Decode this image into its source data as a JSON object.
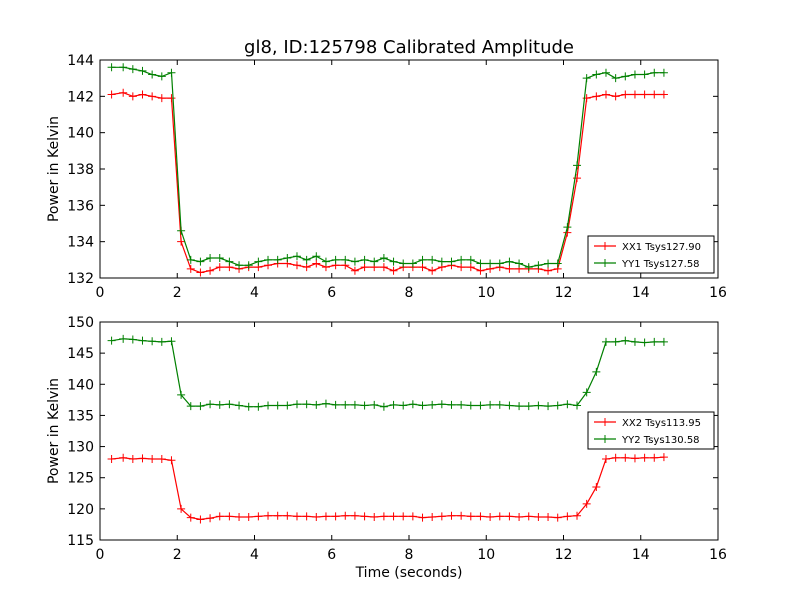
{
  "figure": {
    "title": "gl8, ID:125798 Calibrated Amplitude"
  },
  "chart_data": [
    {
      "type": "line",
      "title": "gl8, ID:125798 Calibrated Amplitude",
      "xlabel": "",
      "ylabel": "Power in Kelvin",
      "xlim": [
        0,
        16
      ],
      "ylim": [
        132,
        144
      ],
      "xticks": [
        "0",
        "2",
        "4",
        "6",
        "8",
        "10",
        "12",
        "14",
        "16"
      ],
      "yticks": [
        "132",
        "134",
        "136",
        "138",
        "140",
        "142",
        "144"
      ],
      "grid": false,
      "legend_position": "lower-right",
      "x": [
        0.3,
        0.6,
        0.85,
        1.1,
        1.35,
        1.6,
        1.85,
        2.1,
        2.35,
        2.6,
        2.85,
        3.1,
        3.35,
        3.6,
        3.85,
        4.1,
        4.35,
        4.6,
        4.85,
        5.1,
        5.35,
        5.6,
        5.85,
        6.1,
        6.35,
        6.6,
        6.85,
        7.1,
        7.35,
        7.6,
        7.85,
        8.1,
        8.35,
        8.6,
        8.85,
        9.1,
        9.35,
        9.6,
        9.85,
        10.1,
        10.35,
        10.6,
        10.85,
        11.1,
        11.35,
        11.6,
        11.85,
        12.1,
        12.35,
        12.6,
        12.85,
        13.1,
        13.35,
        13.6,
        13.85,
        14.1,
        14.35,
        14.6
      ],
      "series": [
        {
          "name": "XX1 Tsys127.90",
          "color": "#ff0000",
          "values": [
            142.1,
            142.2,
            142.0,
            142.1,
            142.0,
            141.9,
            141.9,
            134.0,
            132.5,
            132.3,
            132.4,
            132.6,
            132.6,
            132.5,
            132.6,
            132.6,
            132.7,
            132.8,
            132.8,
            132.7,
            132.6,
            132.8,
            132.6,
            132.7,
            132.7,
            132.4,
            132.6,
            132.6,
            132.6,
            132.4,
            132.6,
            132.6,
            132.6,
            132.4,
            132.6,
            132.7,
            132.6,
            132.6,
            132.4,
            132.5,
            132.6,
            132.5,
            132.5,
            132.5,
            132.5,
            132.4,
            132.5,
            134.5,
            137.5,
            141.9,
            142.0,
            142.1,
            142.0,
            142.1,
            142.1,
            142.1,
            142.1,
            142.1
          ]
        },
        {
          "name": "YY1 Tsys127.58",
          "color": "#008000",
          "values": [
            143.6,
            143.6,
            143.5,
            143.4,
            143.2,
            143.1,
            143.3,
            134.6,
            133.0,
            132.9,
            133.1,
            133.1,
            132.9,
            132.7,
            132.7,
            132.9,
            133.0,
            133.0,
            133.1,
            133.2,
            133.0,
            133.2,
            132.9,
            133.0,
            133.0,
            132.9,
            133.0,
            132.9,
            133.1,
            132.9,
            132.8,
            132.8,
            133.0,
            133.0,
            132.9,
            132.9,
            133.0,
            133.0,
            132.8,
            132.8,
            132.8,
            132.9,
            132.8,
            132.6,
            132.7,
            132.8,
            132.8,
            134.8,
            138.2,
            143.0,
            143.2,
            143.3,
            143.0,
            143.1,
            143.2,
            143.2,
            143.3,
            143.3
          ]
        }
      ]
    },
    {
      "type": "line",
      "title": "",
      "xlabel": "Time (seconds)",
      "ylabel": "Power in Kelvin",
      "xlim": [
        0,
        16
      ],
      "ylim": [
        115,
        150
      ],
      "xticks": [
        "0",
        "2",
        "4",
        "6",
        "8",
        "10",
        "12",
        "14",
        "16"
      ],
      "yticks": [
        "115",
        "120",
        "125",
        "130",
        "135",
        "140",
        "145",
        "150"
      ],
      "grid": false,
      "legend_position": "center-right",
      "x": [
        0.3,
        0.6,
        0.85,
        1.1,
        1.35,
        1.6,
        1.85,
        2.1,
        2.35,
        2.6,
        2.85,
        3.1,
        3.35,
        3.6,
        3.85,
        4.1,
        4.35,
        4.6,
        4.85,
        5.1,
        5.35,
        5.6,
        5.85,
        6.1,
        6.35,
        6.6,
        6.85,
        7.1,
        7.35,
        7.6,
        7.85,
        8.1,
        8.35,
        8.6,
        8.85,
        9.1,
        9.35,
        9.6,
        9.85,
        10.1,
        10.35,
        10.6,
        10.85,
        11.1,
        11.35,
        11.6,
        11.85,
        12.1,
        12.35,
        12.6,
        12.85,
        13.1,
        13.35,
        13.6,
        13.85,
        14.1,
        14.35,
        14.6
      ],
      "series": [
        {
          "name": "XX2 Tsys113.95",
          "color": "#ff0000",
          "values": [
            128.0,
            128.2,
            128.0,
            128.1,
            128.0,
            128.0,
            127.8,
            120.0,
            118.6,
            118.3,
            118.5,
            118.8,
            118.8,
            118.7,
            118.7,
            118.8,
            118.9,
            118.9,
            118.9,
            118.8,
            118.8,
            118.7,
            118.8,
            118.8,
            118.9,
            118.9,
            118.8,
            118.7,
            118.8,
            118.8,
            118.8,
            118.8,
            118.6,
            118.7,
            118.8,
            118.9,
            118.9,
            118.8,
            118.8,
            118.7,
            118.8,
            118.8,
            118.7,
            118.8,
            118.7,
            118.7,
            118.6,
            118.8,
            118.9,
            120.8,
            123.5,
            128.0,
            128.2,
            128.2,
            128.1,
            128.2,
            128.2,
            128.3
          ]
        },
        {
          "name": "YY2 Tsys130.58",
          "color": "#008000",
          "values": [
            147.0,
            147.3,
            147.2,
            147.0,
            146.9,
            146.8,
            146.9,
            138.3,
            136.5,
            136.5,
            136.8,
            136.7,
            136.8,
            136.6,
            136.4,
            136.4,
            136.6,
            136.6,
            136.6,
            136.8,
            136.8,
            136.7,
            136.9,
            136.7,
            136.7,
            136.7,
            136.6,
            136.7,
            136.4,
            136.7,
            136.6,
            136.8,
            136.6,
            136.7,
            136.8,
            136.7,
            136.7,
            136.6,
            136.6,
            136.7,
            136.7,
            136.6,
            136.5,
            136.5,
            136.6,
            136.5,
            136.6,
            136.8,
            136.6,
            138.7,
            142.0,
            146.8,
            146.8,
            147.0,
            146.8,
            146.7,
            146.8,
            146.8
          ]
        }
      ]
    }
  ]
}
